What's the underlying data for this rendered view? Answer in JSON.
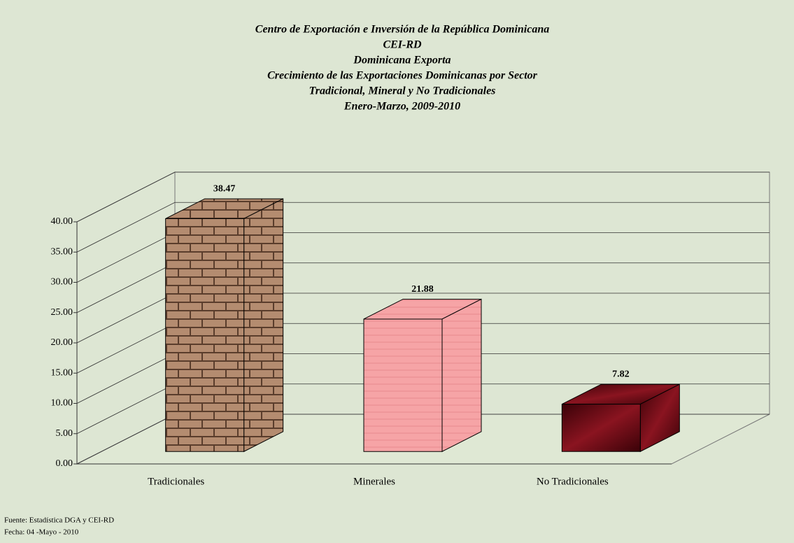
{
  "chart_data": {
    "type": "bar3d",
    "title": [
      "Centro de  Exportación e Inversión de la República Dominicana",
      "CEI-RD",
      "Dominicana Exporta",
      "Crecimiento de las Exportaciones Dominicanas por Sector",
      "Tradicional, Mineral y No Tradicionales",
      "Enero-Marzo, 2009-2010"
    ],
    "categories": [
      "Tradicionales",
      "Minerales",
      "No Tradicionales"
    ],
    "values": [
      38.47,
      21.88,
      7.82
    ],
    "colors": [
      "#b48c70",
      "#f6a4a6",
      "#6a0b16"
    ],
    "ylim": [
      0,
      40
    ],
    "yticks": [
      {
        "value": 0,
        "label": "0.00"
      },
      {
        "value": 5,
        "label": "5.00"
      },
      {
        "value": 10,
        "label": "10.00"
      },
      {
        "value": 15,
        "label": "15.00"
      },
      {
        "value": 20,
        "label": "20.00"
      },
      {
        "value": 25,
        "label": "25.00"
      },
      {
        "value": 30,
        "label": "30.00"
      },
      {
        "value": 35,
        "label": "35.00"
      },
      {
        "value": 40,
        "label": "40.00"
      }
    ],
    "grid": true,
    "notes": [
      "Fuente: Estadística DGA y CEI-RD",
      "Fecha: 04 -Mayo - 2010"
    ]
  }
}
